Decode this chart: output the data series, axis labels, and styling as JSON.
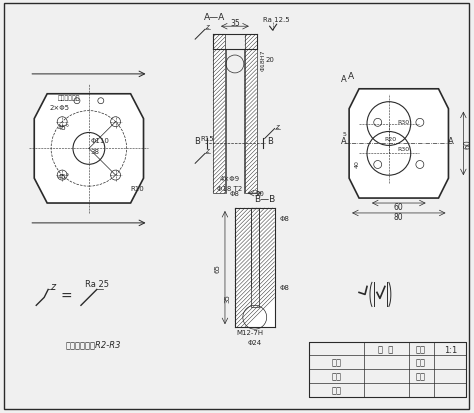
{
  "bg_color": "#f0f0f0",
  "line_color": "#2a2a2a",
  "hatch_color": "#2a2a2a",
  "title": "",
  "note_text": "未注圆角半径R2-R3",
  "table_labels": [
    "表 盖",
    "比例",
    "1:1",
    "制图",
    "件数",
    "描图",
    "重量",
    "审核"
  ],
  "roughness_note": "Ra 25",
  "roughness_note2": "Ra 12.5"
}
